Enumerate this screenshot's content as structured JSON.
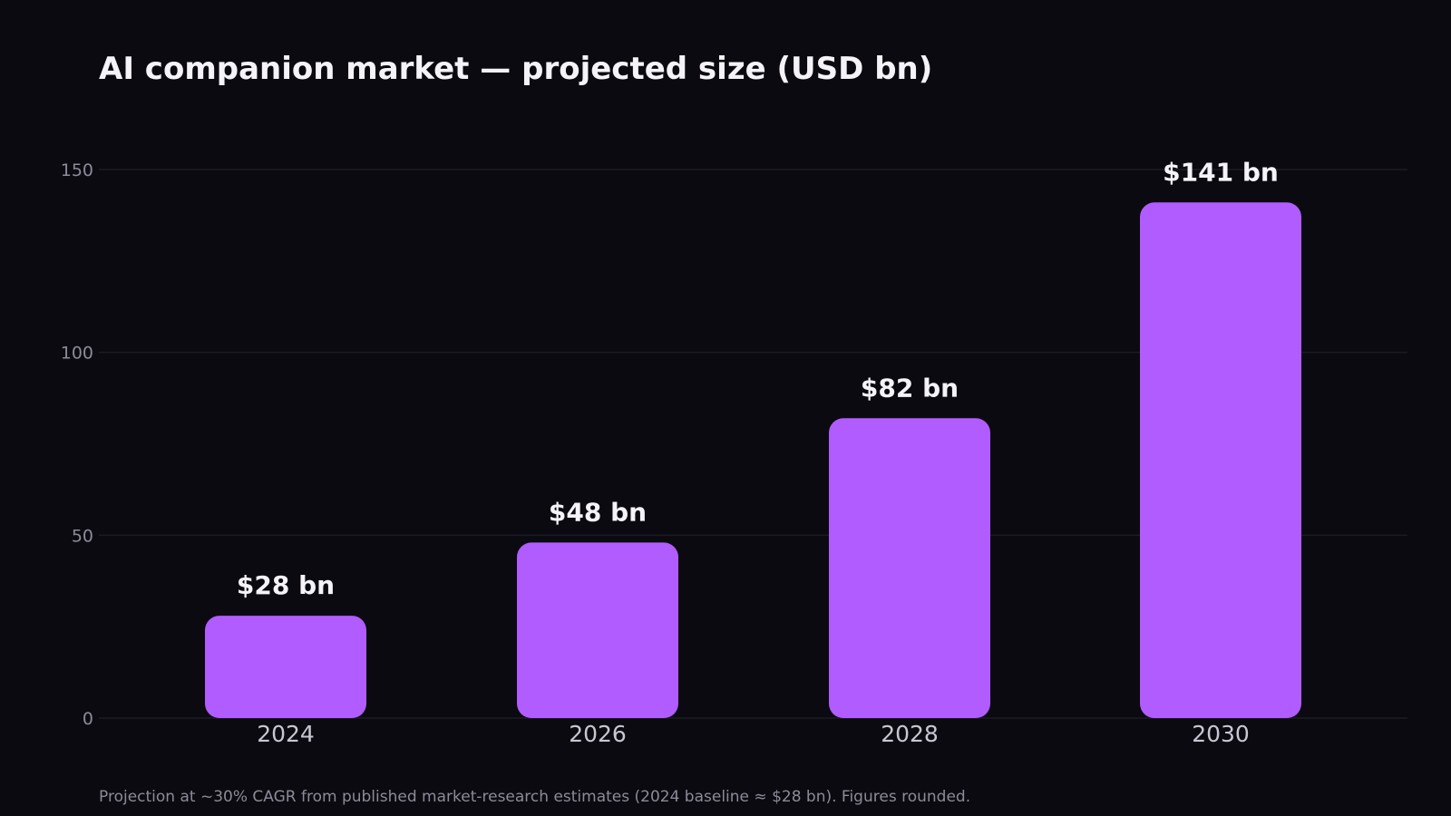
{
  "chart_data": {
    "type": "bar",
    "title": "AI companion market — projected size (USD bn)",
    "categories": [
      "2024",
      "2026",
      "2028",
      "2030"
    ],
    "values": [
      28,
      48,
      82,
      141
    ],
    "data_labels": [
      "$28 bn",
      "$48 bn",
      "$82 bn",
      "$141 bn"
    ],
    "yticks": [
      "0",
      "50",
      "100",
      "150"
    ],
    "ylim": [
      0,
      150
    ],
    "xlabel": "",
    "ylabel": "",
    "grid": true,
    "bar_color": "#b05cff",
    "footnote": "Projection at ~30% CAGR from published market-research estimates (2024 baseline ≈ $28 bn). Figures rounded."
  }
}
